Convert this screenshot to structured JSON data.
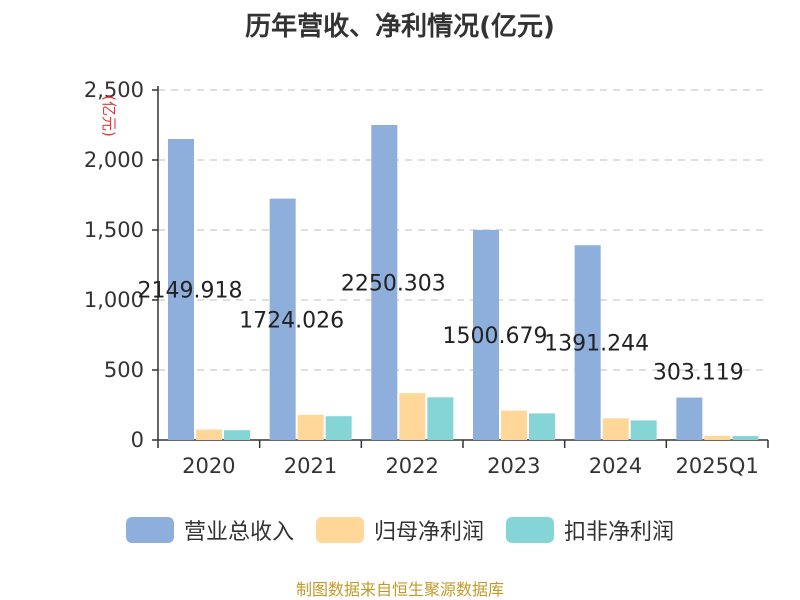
{
  "source_text": "制图数据来自恒生聚源数据库",
  "colors": {
    "revenue": "#8eaedc",
    "net_profit": "#ffd799",
    "deducted_profit": "#85d5d7",
    "source": "#c39a28",
    "ylabel": "#e53935",
    "grid": "#cccccc",
    "axis": "#333333",
    "text": "#333333"
  },
  "chart_data": {
    "type": "bar",
    "title": "历年营收、净利情况(亿元)",
    "ylabel": "(亿元)",
    "categories": [
      "2020",
      "2021",
      "2022",
      "2023",
      "2024",
      "2025Q1"
    ],
    "ylim": [
      0,
      2500
    ],
    "yticks": [
      0,
      500,
      1000,
      1500,
      2000,
      2500
    ],
    "ytick_labels": [
      "0",
      "500",
      "1,000",
      "1,500",
      "2,000",
      "2,500"
    ],
    "grid": true,
    "legend_position": "bottom",
    "series": [
      {
        "name": "营业总收入",
        "color_key": "revenue",
        "values": [
          2149.918,
          1724.026,
          2250.303,
          1500.679,
          1391.244,
          303.119
        ],
        "data_labels": [
          "2149.918",
          "1724.026",
          "2250.303",
          "1500.679",
          "1391.244",
          "303.119"
        ]
      },
      {
        "name": "归母净利润",
        "color_key": "net_profit",
        "values": [
          75,
          180,
          335,
          210,
          155,
          30
        ]
      },
      {
        "name": "扣非净利润",
        "color_key": "deducted_profit",
        "values": [
          70,
          170,
          305,
          190,
          140,
          28
        ]
      }
    ]
  }
}
